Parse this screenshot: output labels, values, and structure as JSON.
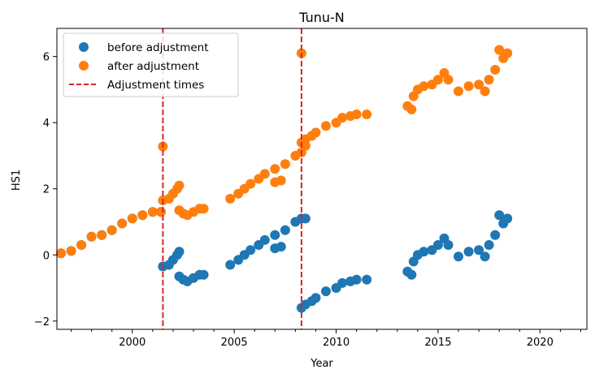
{
  "chart_data": {
    "type": "scatter",
    "title": "Tunu-N",
    "xlabel": "Year",
    "ylabel": "HS1",
    "xlim": [
      1996.3,
      2022.3
    ],
    "ylim": [
      -2.25,
      6.85
    ],
    "xticks": [
      2000,
      2005,
      2010,
      2015,
      2020
    ],
    "xtick_labels": [
      "2000",
      "2005",
      "2010",
      "2015",
      "2020"
    ],
    "yticks": [
      -2,
      0,
      2,
      4,
      6
    ],
    "ytick_labels": [
      "−2",
      "0",
      "2",
      "4",
      "6"
    ],
    "grid": false,
    "legend_position": "top-left",
    "legend": [
      {
        "label": "before adjustment",
        "kind": "marker",
        "color": "#1f77b4"
      },
      {
        "label": "after adjustment",
        "kind": "marker",
        "color": "#ff7f0e"
      },
      {
        "label": "Adjustment times",
        "kind": "dashed-line",
        "color": "#d62728"
      }
    ],
    "series": [
      {
        "name": "before adjustment",
        "color": "#1f77b4",
        "points": [
          [
            1996.5,
            0.05
          ],
          [
            1997.0,
            0.12
          ],
          [
            1997.5,
            0.3
          ],
          [
            1998.0,
            0.55
          ],
          [
            1998.5,
            0.6
          ],
          [
            1999.0,
            0.75
          ],
          [
            1999.5,
            0.95
          ],
          [
            2000.0,
            1.1
          ],
          [
            2000.5,
            1.2
          ],
          [
            2001.0,
            1.3
          ],
          [
            2001.4,
            1.3
          ],
          [
            2001.5,
            -0.35
          ],
          [
            2001.8,
            -0.3
          ],
          [
            2002.0,
            -0.15
          ],
          [
            2002.2,
            0.0
          ],
          [
            2002.3,
            0.1
          ],
          [
            2002.3,
            -0.65
          ],
          [
            2002.5,
            -0.75
          ],
          [
            2002.7,
            -0.8
          ],
          [
            2003.0,
            -0.7
          ],
          [
            2003.3,
            -0.6
          ],
          [
            2003.5,
            -0.6
          ],
          [
            2004.8,
            -0.3
          ],
          [
            2005.2,
            -0.15
          ],
          [
            2005.5,
            0.0
          ],
          [
            2005.8,
            0.15
          ],
          [
            2006.2,
            0.3
          ],
          [
            2006.5,
            0.45
          ],
          [
            2007.0,
            0.6
          ],
          [
            2007.0,
            0.2
          ],
          [
            2007.3,
            0.25
          ],
          [
            2007.5,
            0.75
          ],
          [
            2008.0,
            1.0
          ],
          [
            2008.3,
            1.1
          ],
          [
            2008.5,
            1.1
          ],
          [
            2008.3,
            -1.6
          ],
          [
            2008.5,
            -1.5
          ],
          [
            2008.8,
            -1.4
          ],
          [
            2009.0,
            -1.3
          ],
          [
            2009.5,
            -1.1
          ],
          [
            2010.0,
            -1.0
          ],
          [
            2010.3,
            -0.85
          ],
          [
            2010.7,
            -0.8
          ],
          [
            2011.0,
            -0.75
          ],
          [
            2011.5,
            -0.75
          ],
          [
            2013.5,
            -0.5
          ],
          [
            2013.7,
            -0.6
          ],
          [
            2013.8,
            -0.2
          ],
          [
            2014.0,
            0.0
          ],
          [
            2014.3,
            0.1
          ],
          [
            2014.7,
            0.15
          ],
          [
            2015.0,
            0.3
          ],
          [
            2015.3,
            0.5
          ],
          [
            2015.5,
            0.3
          ],
          [
            2016.0,
            -0.05
          ],
          [
            2016.5,
            0.1
          ],
          [
            2017.0,
            0.15
          ],
          [
            2017.3,
            -0.05
          ],
          [
            2017.5,
            0.3
          ],
          [
            2017.8,
            0.6
          ],
          [
            2018.0,
            1.2
          ],
          [
            2018.2,
            0.95
          ],
          [
            2018.4,
            1.1
          ]
        ]
      },
      {
        "name": "after adjustment",
        "color": "#ff7f0e",
        "points": [
          [
            1996.5,
            0.05
          ],
          [
            1997.0,
            0.12
          ],
          [
            1997.5,
            0.3
          ],
          [
            1998.0,
            0.55
          ],
          [
            1998.5,
            0.6
          ],
          [
            1999.0,
            0.75
          ],
          [
            1999.5,
            0.95
          ],
          [
            2000.0,
            1.1
          ],
          [
            2000.5,
            1.2
          ],
          [
            2001.0,
            1.3
          ],
          [
            2001.4,
            1.3
          ],
          [
            2001.5,
            1.65
          ],
          [
            2001.8,
            1.7
          ],
          [
            2002.0,
            1.85
          ],
          [
            2002.2,
            2.0
          ],
          [
            2002.3,
            2.1
          ],
          [
            2002.3,
            1.35
          ],
          [
            2002.5,
            1.25
          ],
          [
            2002.7,
            1.2
          ],
          [
            2003.0,
            1.3
          ],
          [
            2003.3,
            1.4
          ],
          [
            2003.5,
            1.4
          ],
          [
            2004.8,
            1.7
          ],
          [
            2005.2,
            1.85
          ],
          [
            2005.5,
            2.0
          ],
          [
            2005.8,
            2.15
          ],
          [
            2006.2,
            2.3
          ],
          [
            2006.5,
            2.45
          ],
          [
            2007.0,
            2.6
          ],
          [
            2007.0,
            2.2
          ],
          [
            2007.3,
            2.25
          ],
          [
            2007.5,
            2.75
          ],
          [
            2008.0,
            3.0
          ],
          [
            2008.3,
            3.1
          ],
          [
            2008.5,
            3.3
          ],
          [
            2008.3,
            3.4
          ],
          [
            2008.5,
            3.5
          ],
          [
            2008.8,
            3.6
          ],
          [
            2009.0,
            3.7
          ],
          [
            2009.5,
            3.9
          ],
          [
            2010.0,
            4.0
          ],
          [
            2010.3,
            4.15
          ],
          [
            2010.7,
            4.2
          ],
          [
            2011.0,
            4.25
          ],
          [
            2011.5,
            4.25
          ],
          [
            2013.5,
            4.5
          ],
          [
            2013.7,
            4.4
          ],
          [
            2013.8,
            4.8
          ],
          [
            2014.0,
            5.0
          ],
          [
            2014.3,
            5.1
          ],
          [
            2014.7,
            5.15
          ],
          [
            2015.0,
            5.3
          ],
          [
            2015.3,
            5.5
          ],
          [
            2015.5,
            5.3
          ],
          [
            2016.0,
            4.95
          ],
          [
            2016.5,
            5.1
          ],
          [
            2017.0,
            5.15
          ],
          [
            2017.3,
            4.95
          ],
          [
            2017.5,
            5.3
          ],
          [
            2017.8,
            5.6
          ],
          [
            2018.0,
            6.2
          ],
          [
            2018.2,
            5.95
          ],
          [
            2018.4,
            6.1
          ],
          [
            2001.5,
            3.28
          ],
          [
            2008.3,
            6.1
          ]
        ]
      }
    ],
    "vertical_lines": [
      {
        "name": "Adjustment times",
        "x": 2001.5,
        "color": "#d62728",
        "style": "dashed"
      },
      {
        "name": "Adjustment times",
        "x": 2008.3,
        "color": "#d62728",
        "style": "dashed"
      }
    ]
  }
}
